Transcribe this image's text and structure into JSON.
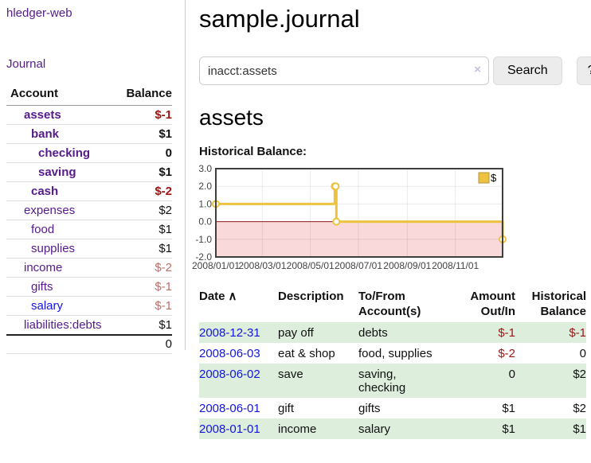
{
  "colors": {
    "link_purple": "#551a8b",
    "link_blue": "#1414e0",
    "negative_strong": "#9c1515",
    "negative_muted": "#c26d6d",
    "row_green": "#ddeedd"
  },
  "sidebar": {
    "app_title": "hledger-web",
    "nav_journal": "Journal",
    "accounts_table": {
      "header": {
        "account": "Account",
        "balance": "Balance"
      },
      "rows": [
        {
          "name": "assets",
          "balance": "$-1",
          "level": 1,
          "bold": true,
          "name_color": "purple",
          "balance_color": "neg-strong"
        },
        {
          "name": "bank",
          "balance": "$1",
          "level": 2,
          "bold": true,
          "name_color": "purple",
          "balance_color": "default"
        },
        {
          "name": "checking",
          "balance": "0",
          "level": 3,
          "bold": true,
          "name_color": "purple",
          "balance_color": "default"
        },
        {
          "name": "saving",
          "balance": "$1",
          "level": 3,
          "bold": true,
          "name_color": "purple",
          "balance_color": "default"
        },
        {
          "name": "cash",
          "balance": "$-2",
          "level": 2,
          "bold": true,
          "name_color": "purple",
          "balance_color": "neg-strong"
        },
        {
          "name": "expenses",
          "balance": "$2",
          "level": 1,
          "bold": false,
          "name_color": "purple",
          "balance_color": "default"
        },
        {
          "name": "food",
          "balance": "$1",
          "level": 2,
          "bold": false,
          "name_color": "purple",
          "balance_color": "default"
        },
        {
          "name": "supplies",
          "balance": "$1",
          "level": 2,
          "bold": false,
          "name_color": "purple",
          "balance_color": "default"
        },
        {
          "name": "income",
          "balance": "$-2",
          "level": 1,
          "bold": false,
          "name_color": "purple",
          "balance_color": "neg-muted"
        },
        {
          "name": "gifts",
          "balance": "$-1",
          "level": 2,
          "bold": false,
          "name_color": "purple",
          "balance_color": "neg-muted"
        },
        {
          "name": "salary",
          "balance": "$-1",
          "level": 2,
          "bold": false,
          "name_color": "blue",
          "balance_color": "neg-muted"
        },
        {
          "name": "liabilities:debts",
          "balance": "$1",
          "level": 1,
          "bold": false,
          "name_color": "purple",
          "balance_color": "default"
        }
      ],
      "total": "0"
    }
  },
  "main": {
    "title": "sample.journal",
    "search": {
      "value": "inacct:assets",
      "clear_icon": "×",
      "button_label": "Search",
      "help_label": "?"
    },
    "account_heading": "assets",
    "chart_label": "Historical Balance:"
  },
  "chart_data": {
    "type": "line",
    "step": true,
    "title": "Historical Balance",
    "series": [
      {
        "name": "$",
        "color": "#edc240",
        "points": [
          [
            "2008-01-01",
            1
          ],
          [
            "2008-06-01",
            2
          ],
          [
            "2008-06-02",
            2
          ],
          [
            "2008-06-03",
            0
          ],
          [
            "2008-12-31",
            -1
          ]
        ]
      }
    ],
    "ylim": [
      -2,
      3
    ],
    "yticks": [
      3.0,
      2.0,
      1.0,
      0.0,
      -1.0,
      -2.0
    ],
    "xticks": [
      "2008/01/01",
      "2008/03/01",
      "2008/05/01",
      "2008/07/01",
      "2008/09/01",
      "2008/11/01"
    ],
    "legend": {
      "label": "$",
      "position": "top-right"
    },
    "negative_region_color": "#f9d9d9",
    "zero_line_color": "#8b1a1a",
    "grid": true
  },
  "register": {
    "columns": [
      {
        "line1": "Date",
        "line2": "",
        "align": "left",
        "sort_icon": "∧"
      },
      {
        "line1": "Description",
        "line2": "",
        "align": "left"
      },
      {
        "line1": "To/From",
        "line2": "Account(s)",
        "align": "left"
      },
      {
        "line1": "Amount",
        "line2": "Out/In",
        "align": "right"
      },
      {
        "line1": "Historical",
        "line2": "Balance",
        "align": "right"
      }
    ],
    "rows": [
      {
        "date": "2008-12-31",
        "description": "pay off",
        "accounts": "debts",
        "amount": "$-1",
        "balance": "$-1"
      },
      {
        "date": "2008-06-03",
        "description": "eat & shop",
        "accounts": "food, supplies",
        "amount": "$-2",
        "balance": "0"
      },
      {
        "date": "2008-06-02",
        "description": "save",
        "accounts": "saving, checking",
        "amount": "0",
        "balance": "$2"
      },
      {
        "date": "2008-06-01",
        "description": "gift",
        "accounts": "gifts",
        "amount": "$1",
        "balance": "$2"
      },
      {
        "date": "2008-01-01",
        "description": "income",
        "accounts": "salary",
        "amount": "$1",
        "balance": "$1"
      }
    ]
  }
}
